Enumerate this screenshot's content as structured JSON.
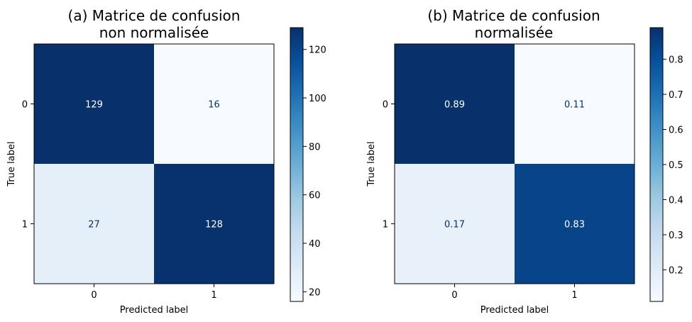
{
  "chart_data": [
    {
      "type": "heatmap",
      "title": [
        "(a) Matrice de confusion",
        "non normalisée"
      ],
      "xlabel": "Predicted label",
      "ylabel": "True label",
      "x_categories": [
        "0",
        "1"
      ],
      "y_categories": [
        "0",
        "1"
      ],
      "values": [
        [
          129,
          16
        ],
        [
          27,
          128
        ]
      ],
      "cell_labels": [
        [
          "129",
          "16"
        ],
        [
          "27",
          "128"
        ]
      ],
      "colorbar": {
        "ticks": [
          "20",
          "40",
          "60",
          "80",
          "100",
          "120"
        ],
        "tick_values": [
          20,
          40,
          60,
          80,
          100,
          120
        ],
        "range": [
          16,
          129
        ]
      },
      "colormap": "Blues"
    },
    {
      "type": "heatmap",
      "title": [
        "(b) Matrice de confusion",
        "normalisée"
      ],
      "xlabel": "Predicted label",
      "ylabel": "True label",
      "x_categories": [
        "0",
        "1"
      ],
      "y_categories": [
        "0",
        "1"
      ],
      "values": [
        [
          0.89,
          0.11
        ],
        [
          0.17,
          0.83
        ]
      ],
      "cell_labels": [
        [
          "0.89",
          "0.11"
        ],
        [
          "0.17",
          "0.83"
        ]
      ],
      "colorbar": {
        "ticks": [
          "0.2",
          "0.3",
          "0.4",
          "0.5",
          "0.6",
          "0.7",
          "0.8"
        ],
        "tick_values": [
          0.2,
          0.3,
          0.4,
          0.5,
          0.6,
          0.7,
          0.8
        ],
        "range": [
          0.11,
          0.89
        ]
      },
      "colormap": "Blues"
    }
  ]
}
